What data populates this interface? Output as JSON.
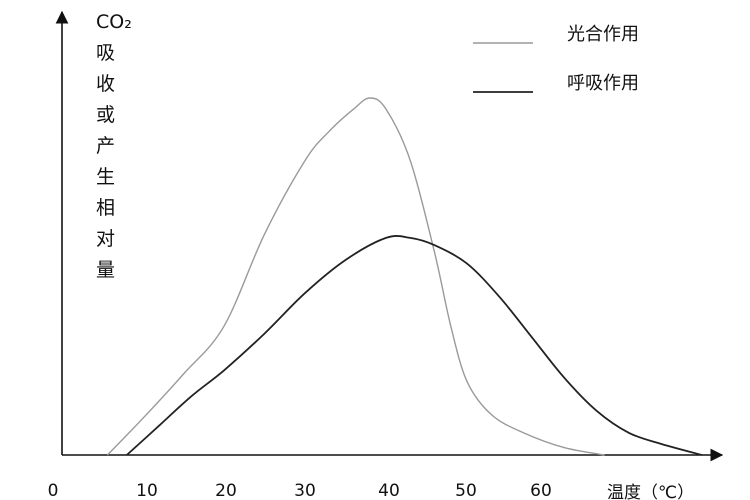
{
  "chart_data": {
    "type": "line",
    "title": "",
    "xlabel": "温度（℃）",
    "ylabel": [
      "CO₂",
      "吸",
      "收",
      "或",
      "产",
      "生",
      "相",
      "对",
      "量"
    ],
    "x_ticks": [
      0,
      10,
      20,
      30,
      40,
      50,
      60
    ],
    "xlim": [
      0,
      80
    ],
    "ylim": [
      0,
      100
    ],
    "grid": false,
    "legend": "top-right",
    "series": [
      {
        "name": "光合作用",
        "color": "#9a9a9a",
        "x": [
          5.6,
          10,
          15,
          20,
          25,
          30,
          33,
          36,
          38,
          40,
          43,
          46,
          48,
          50,
          53,
          57,
          62,
          67
        ],
        "y": [
          0,
          10,
          22,
          35,
          60,
          80,
          88,
          94,
          97,
          94,
          80,
          55,
          35,
          20,
          11,
          6,
          2,
          0
        ]
      },
      {
        "name": "呼吸作用",
        "color": "#222222",
        "x": [
          8,
          12,
          16,
          20,
          25,
          30,
          35,
          40,
          43,
          46,
          50,
          54,
          58,
          62,
          66,
          70,
          74,
          79
        ],
        "y": [
          0,
          8,
          16,
          23,
          33,
          44,
          53,
          59,
          59,
          57,
          52,
          43,
          32,
          21,
          12,
          6,
          3,
          0
        ]
      }
    ]
  }
}
